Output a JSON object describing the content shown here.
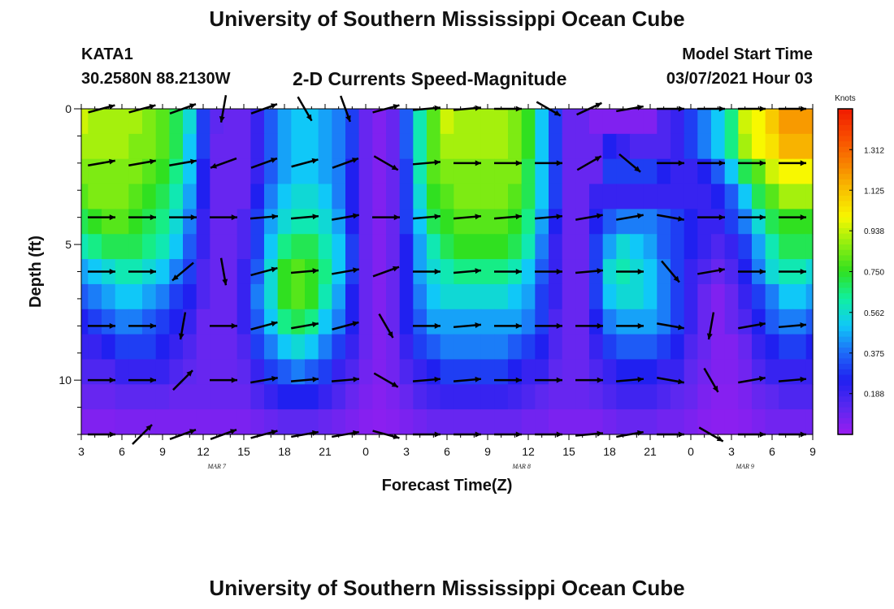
{
  "header": {
    "title": "University of Southern Mississippi Ocean Cube",
    "station": "KATA1",
    "coords": "30.2580N 88.2130W",
    "chart_title": "2-D Currents Speed-Magnitude",
    "model_label": "Model Start Time",
    "model_time": "03/07/2021 Hour 03"
  },
  "footer": {
    "title": "University of Southern Mississippi Ocean Cube"
  },
  "chart_data": {
    "type": "heatmap",
    "title": "2-D Currents Speed-Magnitude",
    "xlabel": "Forecast Time(Z)",
    "ylabel": "Depth (ft)",
    "x_hours": [
      3,
      4,
      5,
      6,
      7,
      8,
      9,
      10,
      11,
      12,
      13,
      14,
      15,
      16,
      17,
      18,
      19,
      20,
      21,
      22,
      23,
      24,
      25,
      26,
      27,
      28,
      29,
      30,
      31,
      32,
      33,
      34,
      35,
      36,
      37,
      38,
      39,
      40,
      41,
      42,
      43,
      44,
      45,
      46,
      47,
      48,
      49,
      50,
      51,
      52,
      53,
      54,
      55,
      56,
      57
    ],
    "x_tick_hours": [
      3,
      6,
      9,
      12,
      15,
      18,
      21,
      24,
      27,
      30,
      33,
      36,
      39,
      42,
      45,
      48,
      51,
      54,
      57
    ],
    "x_tick_labels": [
      "3",
      "6",
      "9",
      "12",
      "15",
      "18",
      "21",
      "0",
      "3",
      "6",
      "9",
      "12",
      "15",
      "18",
      "21",
      "0",
      "3",
      "6",
      "9"
    ],
    "day_labels": [
      {
        "hour": 13,
        "text": "MAR 7"
      },
      {
        "hour": 35.5,
        "text": "MAR 8"
      },
      {
        "hour": 52,
        "text": "MAR 9"
      }
    ],
    "depth_rows": [
      0,
      1,
      2,
      3,
      4,
      5,
      6,
      7,
      8,
      9,
      10,
      11,
      12
    ],
    "ylim": [
      0,
      12
    ],
    "y_ticks": [
      0,
      5,
      10
    ],
    "colorbar": {
      "unit": "Knots",
      "range": [
        0,
        1.5
      ],
      "ticks": [
        0.188,
        0.375,
        0.562,
        0.75,
        0.938,
        1.125,
        1.312
      ],
      "tick_labels": [
        "0.188",
        "0.375",
        "0.562",
        "0.750",
        "0.938",
        "1.125",
        "1.312"
      ],
      "colors": [
        "#9a1cf0",
        "#5a28f0",
        "#2020f0",
        "#1e6af8",
        "#10c8f8",
        "#10f0a0",
        "#30e020",
        "#90ee10",
        "#f8f800",
        "#f8c000",
        "#f88000",
        "#f84a00",
        "#f01a00"
      ]
    },
    "speed_knots": [
      [
        0.95,
        0.9,
        0.9,
        0.9,
        0.9,
        0.85,
        0.8,
        0.7,
        0.55,
        0.3,
        0.12,
        0.1,
        0.1,
        0.2,
        0.35,
        0.45,
        0.5,
        0.5,
        0.45,
        0.4,
        0.3,
        0.1,
        0.05,
        0.1,
        0.35,
        0.6,
        0.8,
        0.95,
        0.9,
        0.9,
        0.9,
        0.9,
        0.85,
        0.75,
        0.5,
        0.3,
        0.1,
        0.1,
        0.05,
        0.05,
        0.05,
        0.05,
        0.05,
        0.15,
        0.2,
        0.3,
        0.4,
        0.5,
        0.65,
        0.95,
        1.0,
        1.1,
        1.2,
        1.2,
        1.2
      ],
      [
        0.9,
        0.9,
        0.9,
        0.9,
        0.85,
        0.85,
        0.8,
        0.7,
        0.5,
        0.3,
        0.1,
        0.1,
        0.1,
        0.2,
        0.35,
        0.45,
        0.5,
        0.5,
        0.45,
        0.4,
        0.3,
        0.1,
        0.05,
        0.1,
        0.35,
        0.6,
        0.8,
        0.9,
        0.9,
        0.9,
        0.9,
        0.9,
        0.85,
        0.75,
        0.5,
        0.3,
        0.1,
        0.1,
        0.1,
        0.25,
        0.2,
        0.15,
        0.15,
        0.15,
        0.2,
        0.3,
        0.4,
        0.5,
        0.65,
        0.9,
        1.0,
        1.05,
        1.15,
        1.15,
        1.15
      ],
      [
        0.85,
        0.85,
        0.85,
        0.85,
        0.85,
        0.8,
        0.75,
        0.65,
        0.5,
        0.25,
        0.1,
        0.1,
        0.1,
        0.2,
        0.35,
        0.45,
        0.5,
        0.5,
        0.45,
        0.4,
        0.25,
        0.1,
        0.05,
        0.1,
        0.3,
        0.6,
        0.8,
        0.85,
        0.85,
        0.85,
        0.85,
        0.85,
        0.85,
        0.7,
        0.5,
        0.3,
        0.1,
        0.1,
        0.1,
        0.3,
        0.3,
        0.3,
        0.3,
        0.25,
        0.2,
        0.2,
        0.25,
        0.35,
        0.5,
        0.7,
        0.8,
        0.95,
        1.0,
        1.0,
        1.0
      ],
      [
        0.8,
        0.85,
        0.85,
        0.85,
        0.8,
        0.75,
        0.7,
        0.6,
        0.45,
        0.25,
        0.1,
        0.1,
        0.1,
        0.25,
        0.4,
        0.5,
        0.55,
        0.55,
        0.5,
        0.4,
        0.25,
        0.1,
        0.05,
        0.1,
        0.3,
        0.55,
        0.75,
        0.8,
        0.85,
        0.85,
        0.85,
        0.85,
        0.8,
        0.7,
        0.5,
        0.3,
        0.1,
        0.1,
        0.2,
        0.2,
        0.2,
        0.2,
        0.2,
        0.2,
        0.2,
        0.2,
        0.2,
        0.25,
        0.35,
        0.5,
        0.7,
        0.8,
        0.9,
        0.9,
        0.9
      ],
      [
        0.7,
        0.75,
        0.8,
        0.8,
        0.75,
        0.7,
        0.65,
        0.55,
        0.4,
        0.2,
        0.1,
        0.1,
        0.15,
        0.3,
        0.45,
        0.55,
        0.6,
        0.6,
        0.55,
        0.45,
        0.25,
        0.1,
        0.05,
        0.1,
        0.3,
        0.5,
        0.7,
        0.75,
        0.8,
        0.8,
        0.8,
        0.8,
        0.75,
        0.65,
        0.45,
        0.25,
        0.1,
        0.1,
        0.25,
        0.35,
        0.4,
        0.4,
        0.4,
        0.35,
        0.3,
        0.25,
        0.2,
        0.2,
        0.3,
        0.4,
        0.55,
        0.7,
        0.75,
        0.75,
        0.75
      ],
      [
        0.6,
        0.65,
        0.7,
        0.7,
        0.7,
        0.65,
        0.6,
        0.5,
        0.35,
        0.2,
        0.1,
        0.1,
        0.15,
        0.3,
        0.5,
        0.65,
        0.7,
        0.7,
        0.6,
        0.5,
        0.3,
        0.1,
        0.05,
        0.1,
        0.25,
        0.45,
        0.6,
        0.7,
        0.75,
        0.75,
        0.75,
        0.75,
        0.7,
        0.6,
        0.4,
        0.2,
        0.1,
        0.1,
        0.3,
        0.45,
        0.55,
        0.5,
        0.45,
        0.35,
        0.3,
        0.25,
        0.2,
        0.15,
        0.2,
        0.3,
        0.45,
        0.6,
        0.7,
        0.7,
        0.7
      ],
      [
        0.45,
        0.5,
        0.55,
        0.6,
        0.6,
        0.55,
        0.5,
        0.4,
        0.3,
        0.15,
        0.1,
        0.1,
        0.2,
        0.35,
        0.55,
        0.75,
        0.8,
        0.75,
        0.65,
        0.5,
        0.3,
        0.1,
        0.05,
        0.1,
        0.25,
        0.45,
        0.55,
        0.6,
        0.65,
        0.65,
        0.65,
        0.65,
        0.6,
        0.5,
        0.35,
        0.2,
        0.1,
        0.1,
        0.3,
        0.55,
        0.6,
        0.55,
        0.5,
        0.4,
        0.3,
        0.2,
        0.15,
        0.1,
        0.15,
        0.25,
        0.4,
        0.55,
        0.6,
        0.6,
        0.55
      ],
      [
        0.35,
        0.4,
        0.45,
        0.5,
        0.5,
        0.45,
        0.4,
        0.3,
        0.25,
        0.15,
        0.1,
        0.1,
        0.2,
        0.4,
        0.55,
        0.75,
        0.8,
        0.75,
        0.6,
        0.45,
        0.25,
        0.1,
        0.05,
        0.1,
        0.25,
        0.4,
        0.5,
        0.55,
        0.55,
        0.55,
        0.55,
        0.55,
        0.5,
        0.45,
        0.3,
        0.2,
        0.1,
        0.1,
        0.3,
        0.5,
        0.55,
        0.55,
        0.5,
        0.4,
        0.3,
        0.2,
        0.1,
        0.05,
        0.1,
        0.2,
        0.3,
        0.4,
        0.5,
        0.5,
        0.45
      ],
      [
        0.25,
        0.3,
        0.35,
        0.4,
        0.4,
        0.35,
        0.3,
        0.25,
        0.2,
        0.1,
        0.1,
        0.1,
        0.2,
        0.35,
        0.5,
        0.65,
        0.7,
        0.65,
        0.5,
        0.4,
        0.25,
        0.1,
        0.05,
        0.1,
        0.25,
        0.35,
        0.45,
        0.45,
        0.45,
        0.45,
        0.45,
        0.45,
        0.45,
        0.4,
        0.3,
        0.15,
        0.1,
        0.1,
        0.25,
        0.4,
        0.45,
        0.45,
        0.45,
        0.4,
        0.3,
        0.2,
        0.1,
        0.05,
        0.1,
        0.15,
        0.25,
        0.35,
        0.4,
        0.4,
        0.35
      ],
      [
        0.2,
        0.2,
        0.25,
        0.3,
        0.3,
        0.3,
        0.25,
        0.2,
        0.15,
        0.1,
        0.1,
        0.1,
        0.15,
        0.3,
        0.4,
        0.5,
        0.55,
        0.5,
        0.4,
        0.3,
        0.2,
        0.1,
        0.05,
        0.08,
        0.2,
        0.3,
        0.35,
        0.4,
        0.4,
        0.4,
        0.4,
        0.4,
        0.35,
        0.3,
        0.25,
        0.15,
        0.1,
        0.1,
        0.2,
        0.3,
        0.35,
        0.35,
        0.35,
        0.3,
        0.25,
        0.15,
        0.1,
        0.05,
        0.05,
        0.1,
        0.2,
        0.25,
        0.3,
        0.3,
        0.25
      ],
      [
        0.15,
        0.15,
        0.15,
        0.2,
        0.2,
        0.2,
        0.2,
        0.15,
        0.12,
        0.1,
        0.1,
        0.1,
        0.12,
        0.2,
        0.3,
        0.35,
        0.4,
        0.35,
        0.3,
        0.2,
        0.15,
        0.08,
        0.05,
        0.08,
        0.15,
        0.2,
        0.25,
        0.3,
        0.3,
        0.3,
        0.3,
        0.3,
        0.25,
        0.2,
        0.2,
        0.12,
        0.1,
        0.1,
        0.15,
        0.2,
        0.25,
        0.25,
        0.25,
        0.2,
        0.2,
        0.12,
        0.08,
        0.05,
        0.05,
        0.08,
        0.15,
        0.2,
        0.2,
        0.2,
        0.2
      ],
      [
        0.1,
        0.1,
        0.1,
        0.12,
        0.12,
        0.12,
        0.12,
        0.1,
        0.1,
        0.1,
        0.1,
        0.1,
        0.1,
        0.15,
        0.2,
        0.25,
        0.25,
        0.25,
        0.2,
        0.15,
        0.1,
        0.06,
        0.04,
        0.06,
        0.1,
        0.15,
        0.18,
        0.2,
        0.2,
        0.2,
        0.2,
        0.2,
        0.18,
        0.15,
        0.12,
        0.1,
        0.1,
        0.1,
        0.12,
        0.15,
        0.18,
        0.18,
        0.18,
        0.15,
        0.12,
        0.1,
        0.06,
        0.04,
        0.04,
        0.06,
        0.1,
        0.12,
        0.15,
        0.15,
        0.15
      ],
      [
        0.05,
        0.05,
        0.05,
        0.06,
        0.06,
        0.06,
        0.06,
        0.06,
        0.06,
        0.06,
        0.06,
        0.06,
        0.06,
        0.08,
        0.1,
        0.12,
        0.12,
        0.12,
        0.1,
        0.08,
        0.06,
        0.04,
        0.03,
        0.04,
        0.06,
        0.08,
        0.1,
        0.1,
        0.1,
        0.1,
        0.1,
        0.1,
        0.1,
        0.08,
        0.08,
        0.06,
        0.06,
        0.06,
        0.06,
        0.08,
        0.1,
        0.1,
        0.1,
        0.08,
        0.08,
        0.06,
        0.04,
        0.03,
        0.03,
        0.04,
        0.06,
        0.08,
        0.08,
        0.08,
        0.08
      ]
    ],
    "vector_hours": [
      4.5,
      7.5,
      10.5,
      13.5,
      16.5,
      19.5,
      22.5,
      25.5,
      28.5,
      31.5,
      34.5,
      37.5,
      40.5,
      43.5,
      46.5,
      49.5,
      52.5,
      55.5
    ],
    "vector_depths": [
      0,
      2,
      4,
      6,
      8,
      10,
      12
    ],
    "vector_directions_deg": [
      [
        15,
        15,
        20,
        -100,
        20,
        -60,
        -70,
        15,
        5,
        5,
        0,
        -30,
        25,
        10,
        0,
        0,
        0,
        0
      ],
      [
        10,
        10,
        10,
        -160,
        20,
        15,
        20,
        -30,
        5,
        0,
        0,
        0,
        30,
        -40,
        0,
        0,
        0,
        0
      ],
      [
        0,
        0,
        0,
        0,
        5,
        5,
        10,
        0,
        5,
        5,
        5,
        5,
        10,
        10,
        -10,
        0,
        0,
        0
      ],
      [
        0,
        0,
        -140,
        -80,
        15,
        5,
        10,
        20,
        0,
        5,
        0,
        0,
        5,
        0,
        -50,
        10,
        0,
        0
      ],
      [
        0,
        0,
        -100,
        0,
        15,
        10,
        15,
        -60,
        0,
        5,
        0,
        0,
        0,
        0,
        -10,
        -100,
        10,
        5
      ],
      [
        0,
        0,
        45,
        0,
        10,
        5,
        5,
        -30,
        5,
        5,
        0,
        0,
        0,
        5,
        -10,
        -60,
        10,
        5
      ],
      [
        0,
        45,
        20,
        20,
        15,
        10,
        10,
        -15,
        0,
        0,
        0,
        0,
        5,
        10,
        0,
        -30,
        0,
        0
      ]
    ]
  }
}
